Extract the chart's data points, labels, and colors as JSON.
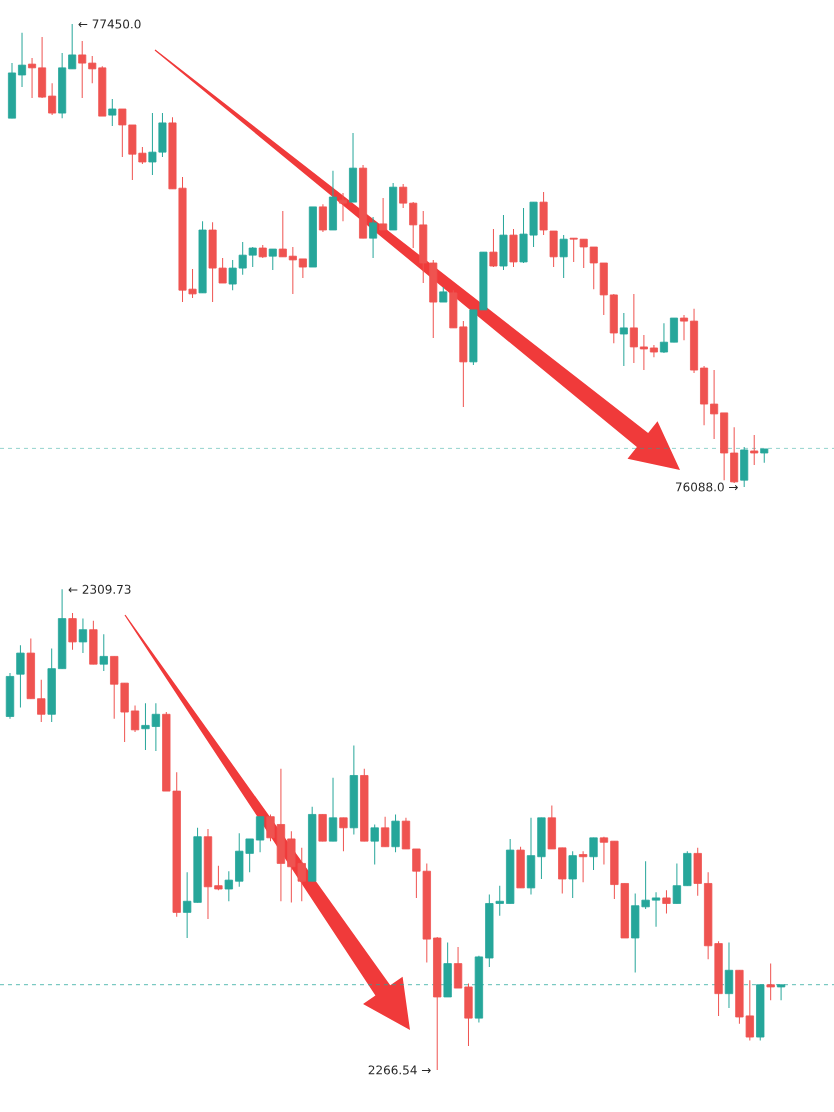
{
  "chart_data": [
    {
      "type": "candlestick",
      "categories": [
        null,
        null,
        null,
        null,
        null,
        null,
        null,
        null,
        null,
        null,
        null,
        null,
        null,
        null,
        null,
        null,
        null,
        null,
        null,
        null,
        null,
        null,
        null,
        null,
        null,
        null,
        null,
        null,
        null,
        null,
        null,
        null,
        null,
        null,
        null,
        null,
        null,
        null,
        null,
        null,
        null,
        null,
        null,
        null,
        null,
        null,
        null,
        null,
        null,
        null,
        null,
        null,
        null,
        null,
        null,
        null,
        null,
        null,
        null,
        null,
        null,
        null,
        null,
        null,
        null,
        null,
        null,
        null,
        null,
        null,
        null,
        null,
        null,
        null,
        null,
        null
      ],
      "ohlc": [
        [
          77173,
          77335,
          77173,
          77306
        ],
        [
          77300,
          77424,
          77265,
          77329
        ],
        [
          77332,
          77350,
          77232,
          77321
        ],
        [
          77321,
          77412,
          77232,
          77235
        ],
        [
          77238,
          77276,
          77182,
          77188
        ],
        [
          77188,
          77365,
          77173,
          77321
        ],
        [
          77318,
          77450,
          77318,
          77359
        ],
        [
          77359,
          77400,
          77232,
          77335
        ],
        [
          77335,
          77356,
          77276,
          77318
        ],
        [
          77321,
          77326,
          77179,
          77179
        ],
        [
          77182,
          77229,
          77150,
          77200
        ],
        [
          77200,
          77200,
          77059,
          77153
        ],
        [
          77153,
          77153,
          76991,
          77067
        ],
        [
          77070,
          77088,
          77038,
          77044
        ],
        [
          77044,
          77188,
          77006,
          77073
        ],
        [
          77073,
          77188,
          77059,
          77159
        ],
        [
          77159,
          77176,
          76965,
          76965
        ],
        [
          76967,
          77000,
          76632,
          76667
        ],
        [
          76670,
          76729,
          76644,
          76656
        ],
        [
          76659,
          76870,
          76659,
          76844
        ],
        [
          76844,
          76867,
          76632,
          76732
        ],
        [
          76732,
          76762,
          76688,
          76688
        ],
        [
          76685,
          76756,
          76667,
          76732
        ],
        [
          76732,
          76809,
          76712,
          76770
        ],
        [
          76770,
          76794,
          76735,
          76791
        ],
        [
          76791,
          76800,
          76762,
          76765
        ],
        [
          76767,
          76788,
          76726,
          76788
        ],
        [
          76788,
          76900,
          76765,
          76765
        ],
        [
          76767,
          76794,
          76656,
          76756
        ],
        [
          76759,
          76759,
          76703,
          76735
        ],
        [
          76735,
          76912,
          76735,
          76912
        ],
        [
          76912,
          76920,
          76838,
          76844
        ],
        [
          76844,
          77018,
          76844,
          76941
        ],
        [
          76932,
          76953,
          76870,
          76923
        ],
        [
          76926,
          77129,
          76926,
          77026
        ],
        [
          77026,
          77035,
          76820,
          76820
        ],
        [
          76820,
          76882,
          76762,
          76865
        ],
        [
          76862,
          76938,
          76844,
          76844
        ],
        [
          76844,
          76982,
          76844,
          76970
        ],
        [
          76970,
          76979,
          76909,
          76923
        ],
        [
          76923,
          76926,
          76791,
          76859
        ],
        [
          76859,
          76900,
          76688,
          76747
        ],
        [
          76747,
          76756,
          76526,
          76632
        ],
        [
          76632,
          76676,
          76632,
          76662
        ],
        [
          76659,
          76667,
          76556,
          76556
        ],
        [
          76559,
          76576,
          76323,
          76456
        ],
        [
          76456,
          76609,
          76447,
          76609
        ],
        [
          76609,
          76779,
          76609,
          76779
        ],
        [
          76779,
          76847,
          76735,
          76738
        ],
        [
          76738,
          76888,
          76726,
          76829
        ],
        [
          76829,
          76847,
          76735,
          76750
        ],
        [
          76750,
          76909,
          76747,
          76832
        ],
        [
          76829,
          76926,
          76794,
          76926
        ],
        [
          76926,
          76956,
          76829,
          76844
        ],
        [
          76841,
          76841,
          76735,
          76765
        ],
        [
          76765,
          76829,
          76703,
          76817
        ],
        [
          76820,
          76820,
          76750,
          76817
        ],
        [
          76817,
          76817,
          76732,
          76794
        ],
        [
          76794,
          76794,
          76670,
          76747
        ],
        [
          76747,
          76747,
          76594,
          76653
        ],
        [
          76653,
          76656,
          76511,
          76541
        ],
        [
          76538,
          76600,
          76444,
          76556
        ],
        [
          76556,
          76656,
          76453,
          76500
        ],
        [
          76500,
          76535,
          76432,
          76494
        ],
        [
          76497,
          76506,
          76470,
          76485
        ],
        [
          76485,
          76570,
          76482,
          76514
        ],
        [
          76514,
          76585,
          76514,
          76585
        ],
        [
          76585,
          76594,
          76520,
          76576
        ],
        [
          76576,
          76612,
          76423,
          76432
        ],
        [
          76438,
          76444,
          76270,
          76332
        ],
        [
          76332,
          76432,
          76229,
          76303
        ],
        [
          76306,
          76306,
          76108,
          76188
        ],
        [
          76188,
          76264,
          76100,
          76103
        ],
        [
          76108,
          76206,
          76088,
          76197
        ],
        [
          76194,
          76241,
          76153,
          76188
        ],
        [
          76188,
          76200,
          76159,
          76200
        ]
      ],
      "colors": [
        "#26a69a",
        "#26a69a",
        "#ef5350",
        "#ef5350",
        "#ef5350",
        "#26a69a",
        "#26a69a",
        "#ef5350",
        "#ef5350",
        "#ef5350",
        "#26a69a",
        "#ef5350",
        "#ef5350",
        "#ef5350",
        "#26a69a",
        "#26a69a",
        "#ef5350",
        "#ef5350",
        "#ef5350",
        "#26a69a",
        "#ef5350",
        "#ef5350",
        "#26a69a",
        "#26a69a",
        "#26a69a",
        "#ef5350",
        "#26a69a",
        "#ef5350",
        "#ef5350",
        "#ef5350",
        "#26a69a",
        "#ef5350",
        "#26a69a",
        "#ef5350",
        "#26a69a",
        "#ef5350",
        "#26a69a",
        "#ef5350",
        "#26a69a",
        "#ef5350",
        "#ef5350",
        "#ef5350",
        "#ef5350",
        "#26a69a",
        "#ef5350",
        "#ef5350",
        "#26a69a",
        "#26a69a",
        "#ef5350",
        "#26a69a",
        "#ef5350",
        "#26a69a",
        "#26a69a",
        "#ef5350",
        "#ef5350",
        "#26a69a",
        "#ef5350",
        "#ef5350",
        "#ef5350",
        "#ef5350",
        "#ef5350",
        "#26a69a",
        "#ef5350",
        "#ef5350",
        "#ef5350",
        "#26a69a",
        "#26a69a",
        "#ef5350",
        "#ef5350",
        "#ef5350",
        "#ef5350",
        "#ef5350",
        "#ef5350",
        "#26a69a",
        "#ef5350",
        "#26a69a"
      ],
      "annotations": [
        "← 77450.0",
        "76088.0 →"
      ],
      "ref_lines": [
        {
          "axis": "y",
          "value": 76202,
          "color": "#26a69a",
          "line_style": "dashed"
        }
      ]
    },
    {
      "type": "candlestick",
      "categories": [
        null,
        null,
        null,
        null,
        null,
        null,
        null,
        null,
        null,
        null,
        null,
        null,
        null,
        null,
        null,
        null,
        null,
        null,
        null,
        null,
        null,
        null,
        null,
        null,
        null,
        null,
        null,
        null,
        null,
        null,
        null,
        null,
        null,
        null,
        null,
        null,
        null,
        null,
        null,
        null,
        null,
        null,
        null,
        null,
        null,
        null,
        null,
        null,
        null,
        null,
        null,
        null,
        null,
        null,
        null,
        null,
        null,
        null,
        null,
        null,
        null,
        null,
        null,
        null,
        null,
        null,
        null,
        null,
        null,
        null,
        null,
        null,
        null,
        null,
        null
      ],
      "ohlc": [
        [
          2298.3,
          2302.2,
          2298.1,
          2301.9
        ],
        [
          2302.1,
          2304.7,
          2299.1,
          2304.0
        ],
        [
          2304.0,
          2305.3,
          2299.9,
          2299.9
        ],
        [
          2299.9,
          2301.6,
          2297.8,
          2298.5
        ],
        [
          2298.5,
          2304.4,
          2297.8,
          2302.6
        ],
        [
          2302.6,
          2309.73,
          2302.6,
          2307.1
        ],
        [
          2307.1,
          2307.6,
          2304.3,
          2305.0
        ],
        [
          2305.0,
          2307.1,
          2304.0,
          2306.1
        ],
        [
          2306.1,
          2306.9,
          2303.0,
          2303.0
        ],
        [
          2303.0,
          2305.7,
          2302.4,
          2303.7
        ],
        [
          2303.7,
          2303.7,
          2298.1,
          2301.2
        ],
        [
          2301.3,
          2301.3,
          2296.0,
          2298.7
        ],
        [
          2298.8,
          2299.3,
          2296.9,
          2297.1
        ],
        [
          2297.2,
          2299.5,
          2295.3,
          2297.5
        ],
        [
          2297.4,
          2299.5,
          2295.2,
          2298.5
        ],
        [
          2298.5,
          2298.7,
          2291.6,
          2291.6
        ],
        [
          2291.6,
          2293.3,
          2280.3,
          2280.7
        ],
        [
          2280.7,
          2284.3,
          2278.4,
          2281.7
        ],
        [
          2281.6,
          2288.3,
          2281.6,
          2287.5
        ],
        [
          2287.5,
          2288.2,
          2280.1,
          2283.0
        ],
        [
          2283.1,
          2284.9,
          2282.7,
          2282.8
        ],
        [
          2282.8,
          2284.4,
          2281.7,
          2283.6
        ],
        [
          2283.5,
          2287.8,
          2283.0,
          2286.2
        ],
        [
          2286.0,
          2287.3,
          2284.3,
          2287.3
        ],
        [
          2287.2,
          2289.3,
          2286.1,
          2289.3
        ],
        [
          2289.3,
          2289.5,
          2287.1,
          2287.4
        ],
        [
          2288.6,
          2293.6,
          2281.7,
          2285.1
        ],
        [
          2287.3,
          2288.0,
          2281.6,
          2284.8
        ],
        [
          2285.1,
          2286.5,
          2281.7,
          2283.5
        ],
        [
          2283.5,
          2290.2,
          2283.5,
          2289.5
        ],
        [
          2289.5,
          2289.5,
          2287.1,
          2287.1
        ],
        [
          2287.1,
          2292.8,
          2287.1,
          2289.2
        ],
        [
          2289.2,
          2289.2,
          2286.2,
          2288.3
        ],
        [
          2288.3,
          2295.7,
          2287.7,
          2293.0
        ],
        [
          2293.0,
          2293.6,
          2287.1,
          2287.1
        ],
        [
          2287.1,
          2288.6,
          2285.0,
          2288.3
        ],
        [
          2288.3,
          2289.3,
          2286.6,
          2286.6
        ],
        [
          2286.6,
          2289.5,
          2286.1,
          2288.9
        ],
        [
          2288.9,
          2289.2,
          2286.4,
          2286.4
        ],
        [
          2286.4,
          2286.4,
          2282.0,
          2284.4
        ],
        [
          2284.4,
          2285.1,
          2276.2,
          2278.3
        ],
        [
          2278.4,
          2278.5,
          2266.54,
          2273.1
        ],
        [
          2273.1,
          2278.0,
          2273.1,
          2276.1
        ],
        [
          2276.1,
          2277.6,
          2273.9,
          2273.9
        ],
        [
          2274.0,
          2274.3,
          2268.7,
          2271.2
        ],
        [
          2271.2,
          2276.8,
          2270.8,
          2276.7
        ],
        [
          2276.6,
          2282.3,
          2275.8,
          2281.5
        ],
        [
          2281.5,
          2283.1,
          2280.4,
          2281.7
        ],
        [
          2281.5,
          2287.3,
          2281.5,
          2286.3
        ],
        [
          2286.3,
          2286.6,
          2282.9,
          2282.9
        ],
        [
          2282.9,
          2289.2,
          2282.3,
          2285.8
        ],
        [
          2285.7,
          2289.2,
          2283.7,
          2289.2
        ],
        [
          2289.2,
          2290.3,
          2286.4,
          2286.4
        ],
        [
          2286.5,
          2286.5,
          2282.4,
          2283.7
        ],
        [
          2283.7,
          2286.2,
          2282.0,
          2285.8
        ],
        [
          2285.9,
          2286.2,
          2283.4,
          2285.7
        ],
        [
          2285.7,
          2287.4,
          2284.5,
          2287.4
        ],
        [
          2287.4,
          2287.5,
          2285.0,
          2287.0
        ],
        [
          2287.1,
          2287.1,
          2281.9,
          2283.2
        ],
        [
          2283.3,
          2283.3,
          2278.4,
          2278.4
        ],
        [
          2278.4,
          2282.4,
          2275.3,
          2281.3
        ],
        [
          2281.2,
          2285.3,
          2281.0,
          2281.8
        ],
        [
          2281.8,
          2282.5,
          2279.4,
          2282.0
        ],
        [
          2282.0,
          2282.7,
          2280.6,
          2281.5
        ],
        [
          2281.5,
          2285.1,
          2281.5,
          2283.1
        ],
        [
          2283.1,
          2286.2,
          2283.1,
          2286.0
        ],
        [
          2286.0,
          2286.5,
          2282.2,
          2283.3
        ],
        [
          2283.3,
          2284.3,
          2276.5,
          2277.7
        ],
        [
          2277.9,
          2278.1,
          2271.4,
          2273.4
        ],
        [
          2273.4,
          2278.0,
          2272.1,
          2275.5
        ],
        [
          2275.5,
          2275.5,
          2270.7,
          2271.3
        ],
        [
          2271.4,
          2274.6,
          2269.2,
          2269.5
        ],
        [
          2269.5,
          2274.2,
          2269.2,
          2274.2
        ],
        [
          2274.2,
          2276.1,
          2272.8,
          2274.0
        ],
        [
          2274.0,
          2274.2,
          2272.8,
          2274.2
        ]
      ],
      "colors": [
        "#26a69a",
        "#26a69a",
        "#ef5350",
        "#ef5350",
        "#26a69a",
        "#26a69a",
        "#ef5350",
        "#26a69a",
        "#ef5350",
        "#26a69a",
        "#ef5350",
        "#ef5350",
        "#ef5350",
        "#26a69a",
        "#26a69a",
        "#ef5350",
        "#ef5350",
        "#26a69a",
        "#26a69a",
        "#ef5350",
        "#ef5350",
        "#26a69a",
        "#26a69a",
        "#26a69a",
        "#26a69a",
        "#ef5350",
        "#ef5350",
        "#ef5350",
        "#ef5350",
        "#26a69a",
        "#ef5350",
        "#26a69a",
        "#ef5350",
        "#26a69a",
        "#ef5350",
        "#26a69a",
        "#ef5350",
        "#26a69a",
        "#ef5350",
        "#ef5350",
        "#ef5350",
        "#ef5350",
        "#26a69a",
        "#ef5350",
        "#ef5350",
        "#26a69a",
        "#26a69a",
        "#26a69a",
        "#26a69a",
        "#ef5350",
        "#26a69a",
        "#26a69a",
        "#ef5350",
        "#ef5350",
        "#26a69a",
        "#ef5350",
        "#26a69a",
        "#ef5350",
        "#ef5350",
        "#ef5350",
        "#26a69a",
        "#26a69a",
        "#26a69a",
        "#ef5350",
        "#26a69a",
        "#26a69a",
        "#ef5350",
        "#ef5350",
        "#ef5350",
        "#26a69a",
        "#ef5350",
        "#ef5350",
        "#26a69a",
        "#ef5350",
        "#26a69a"
      ],
      "annotations": [
        "← 2309.73",
        "2266.54 →"
      ],
      "ref_lines": [
        {
          "axis": "y",
          "value": 2274.2,
          "color": "#26a69a",
          "line_style": "dashed"
        }
      ]
    }
  ]
}
